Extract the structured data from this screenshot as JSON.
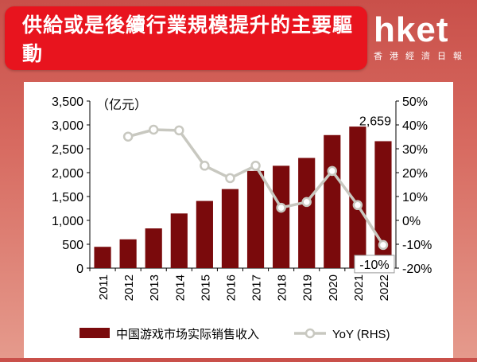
{
  "header": {
    "title": "供給或是後續行業規模提升的主要驅動",
    "logo_text": "hket",
    "logo_sub": "香港經濟日報"
  },
  "chart_data": {
    "type": "bar",
    "categories": [
      "2011",
      "2012",
      "2013",
      "2014",
      "2015",
      "2016",
      "2017",
      "2018",
      "2019",
      "2020",
      "2021",
      "2022"
    ],
    "series": [
      {
        "name": "中国游戏市场实际销售收入",
        "type": "bar",
        "axis": "left",
        "values": [
          446,
          603,
          832,
          1145,
          1407,
          1656,
          2036,
          2144,
          2308,
          2787,
          2965,
          2659
        ]
      },
      {
        "name": "YoY (RHS)",
        "type": "line",
        "axis": "right",
        "values": [
          null,
          35.1,
          38.0,
          37.7,
          22.9,
          17.7,
          22.9,
          5.3,
          7.7,
          20.7,
          6.4,
          -10.3
        ]
      }
    ],
    "y_left": {
      "unit_label": "（亿元）",
      "min": 0,
      "max": 3500,
      "ticks": [
        "0",
        "500",
        "1,000",
        "1,500",
        "2,000",
        "2,500",
        "3,000",
        "3,500"
      ]
    },
    "y_right": {
      "min": -20,
      "max": 50,
      "ticks": [
        "-20%",
        "-10%",
        "0%",
        "10%",
        "20%",
        "30%",
        "40%",
        "50%"
      ]
    },
    "annotations": {
      "last_bar_label": "2,659",
      "last_yoy_label": "-10%"
    },
    "legend": [
      "中国游戏市场实际销售收入",
      "YoY (RHS)"
    ],
    "legend_position": "bottom",
    "colors": {
      "bar": "#7a0a0c",
      "line": "#c8c8c0",
      "marker_fill": "#ffffff"
    },
    "grid": false
  }
}
